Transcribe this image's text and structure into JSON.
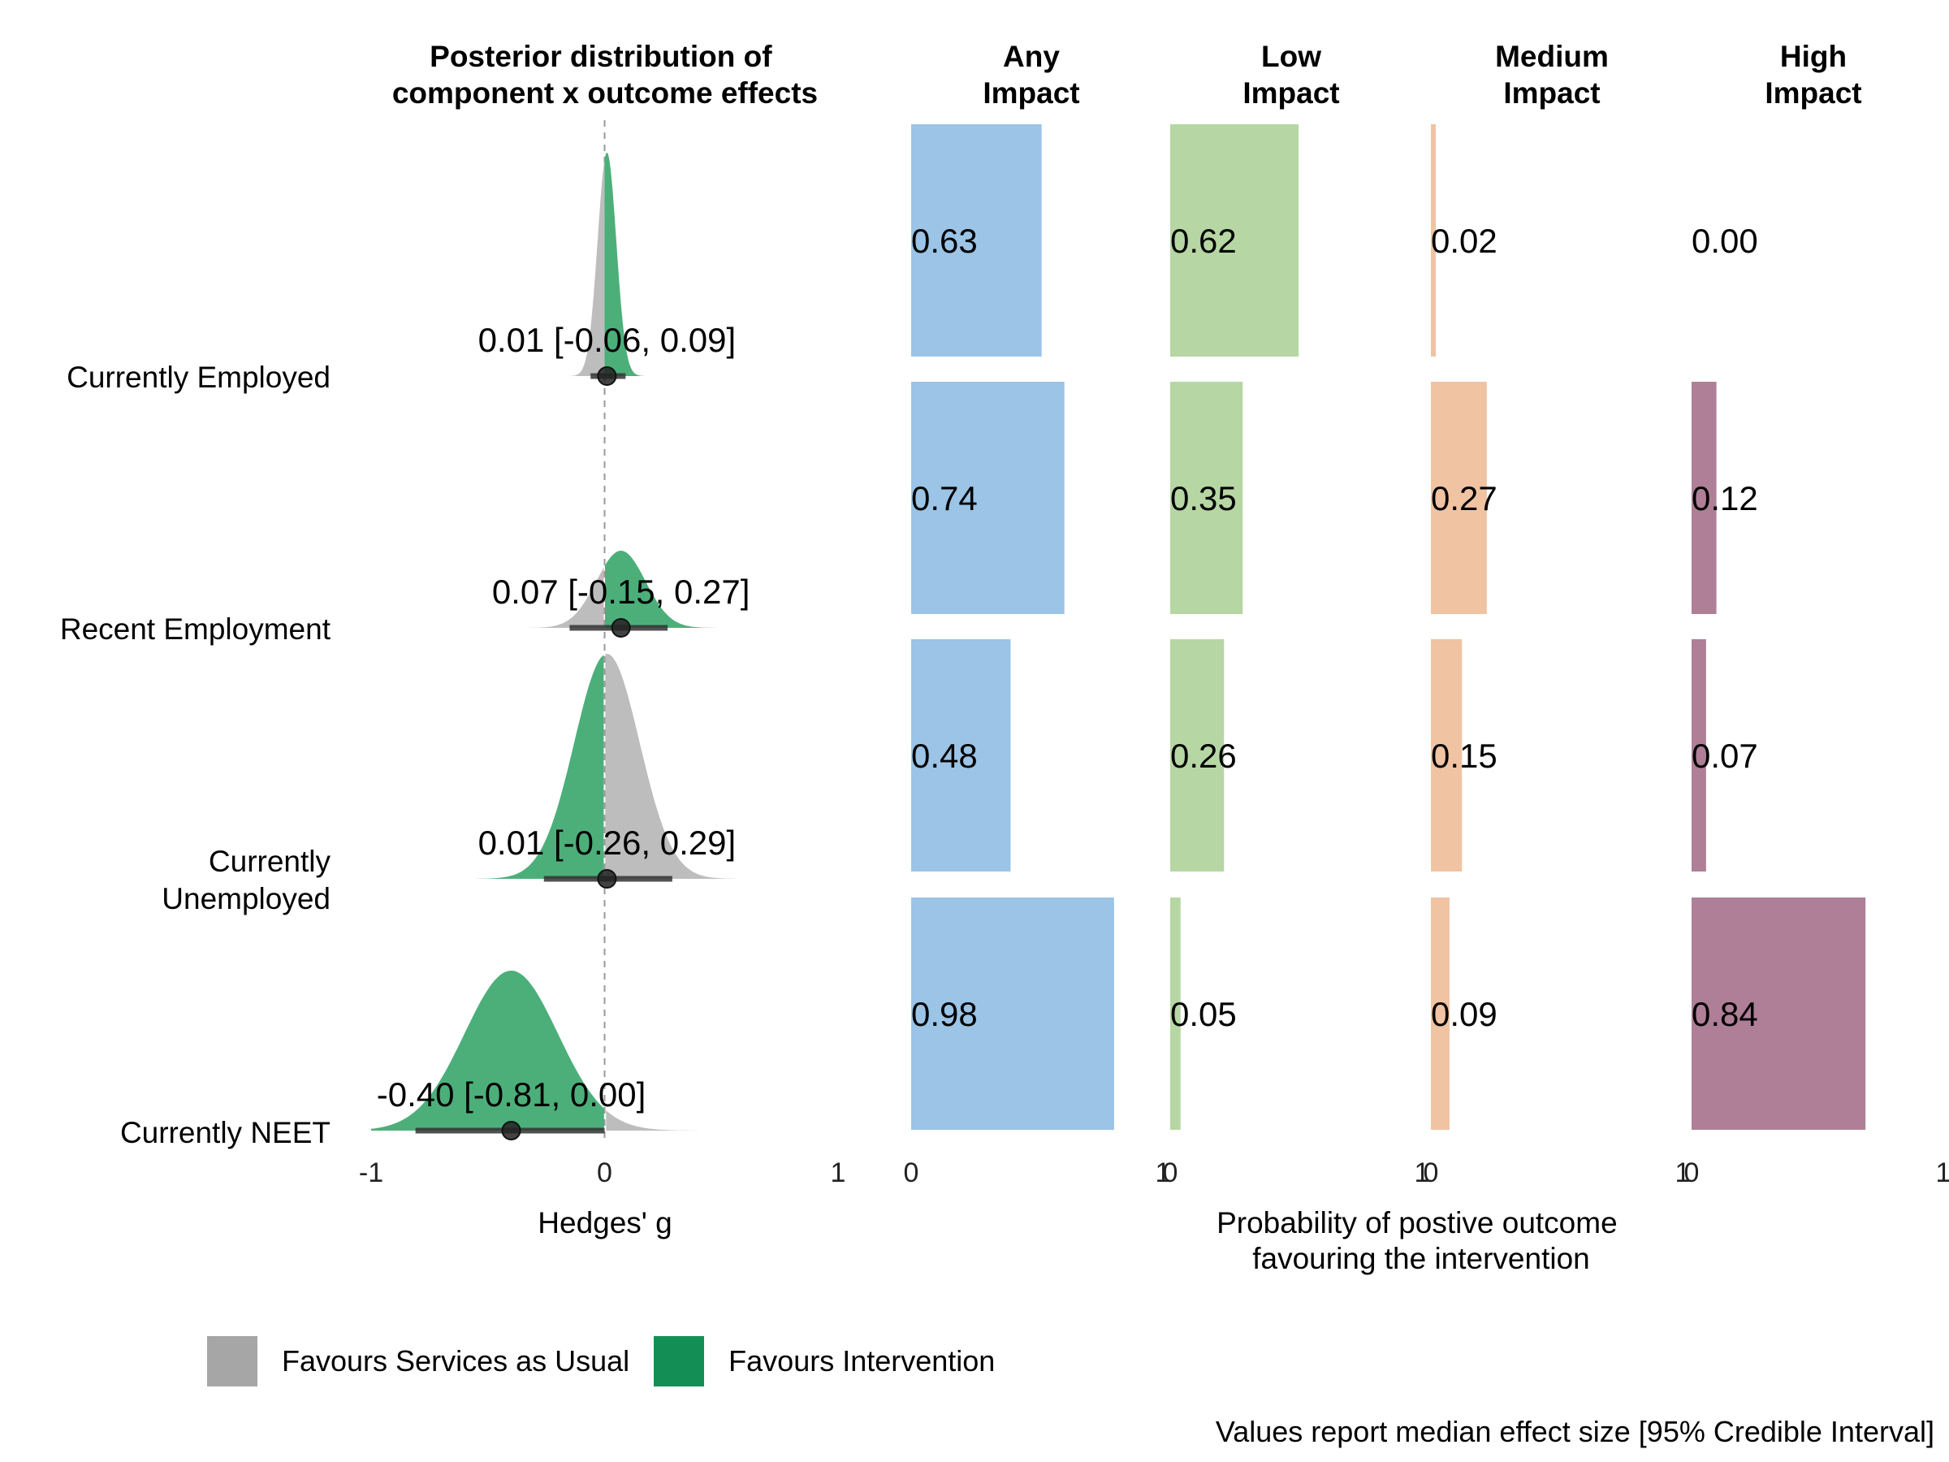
{
  "colors": {
    "grey_density": "#bdbdbd",
    "green_density": "#4caf7a",
    "legend_grey": "#a6a6a6",
    "legend_green": "#138f55",
    "any": "#9bc4e6",
    "low": "#b6d6a4",
    "medium": "#f0c3a2",
    "high": "#ae7f97"
  },
  "legend": {
    "services_label": "Favours Services as Usual",
    "intervention_label": "Favours Intervention"
  },
  "caption": "Values report median effect size [95% Credible Interval]",
  "chart_data": [
    {
      "type": "area",
      "title": "Posterior distribution of component x outcome effects",
      "xlabel": "Hedges' g",
      "xlim": [
        -1,
        1
      ],
      "x_ticks": [
        "-1",
        "0",
        "1"
      ],
      "reference_line": 0,
      "rows": [
        {
          "name": "Currently Employed",
          "median": 0.01,
          "lower": -0.06,
          "upper": 0.09,
          "sd": 0.04,
          "label": "0.01 [-0.06, 0.09]"
        },
        {
          "name": "Recent Employment",
          "median": 0.07,
          "lower": -0.15,
          "upper": 0.27,
          "sd": 0.105,
          "label": "0.07 [-0.15, 0.27]"
        },
        {
          "name": "Currently Unemployed",
          "median": 0.01,
          "lower": -0.26,
          "upper": 0.29,
          "sd": 0.14,
          "label": "0.01 [-0.26, 0.29]"
        },
        {
          "name": "Currently NEET",
          "median": -0.4,
          "lower": -0.81,
          "upper": 0.0,
          "sd": 0.2,
          "label": "-0.40 [-0.81, 0.00]"
        }
      ]
    },
    {
      "type": "bar",
      "xlabel": "Probability of postive outcome favouring the intervention",
      "categories": [
        "Currently Employed",
        "Recent Employment",
        "Currently Unemployed",
        "Currently NEET"
      ],
      "xlim": [
        0,
        1
      ],
      "x_ticks": [
        "0",
        "1"
      ],
      "series": [
        {
          "name": "Any Impact",
          "values": [
            0.63,
            0.74,
            0.48,
            0.98
          ],
          "labels": [
            "0.63",
            "0.74",
            "0.48",
            "0.98"
          ]
        },
        {
          "name": "Low Impact",
          "values": [
            0.62,
            0.35,
            0.26,
            0.05
          ],
          "labels": [
            "0.62",
            "0.35",
            "0.26",
            "0.05"
          ]
        },
        {
          "name": "Medium Impact",
          "values": [
            0.02,
            0.27,
            0.15,
            0.09
          ],
          "labels": [
            "0.02",
            "0.27",
            "0.15",
            "0.09"
          ]
        },
        {
          "name": "High Impact",
          "values": [
            0.0,
            0.12,
            0.07,
            0.84
          ],
          "labels": [
            "0.00",
            "0.12",
            "0.07",
            "0.84"
          ]
        }
      ]
    }
  ]
}
